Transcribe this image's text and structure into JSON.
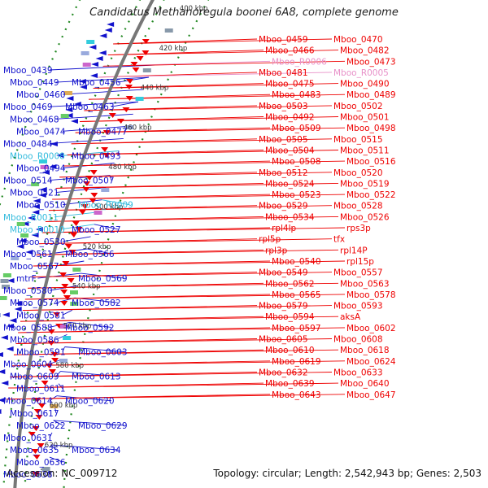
{
  "title": "Candidatus Methanoregula boonei 6A8, complete genome",
  "footer": {
    "accession": "Accession: NC_009712",
    "topology": "Topology: circular; Length: 2,542,943 bp; Genes: 2,503"
  },
  "colors": {
    "forward_strand": "#ee0000",
    "reverse_strand": "#1111cc",
    "rna_forward": "#e890c8",
    "rna_reverse": "#33bbdd",
    "backbone": "#777777",
    "ticks": "#228822"
  },
  "kbp_ticks": [
    "400 kbp",
    "420 kbp",
    "440 kbp",
    "460 kbp",
    "480 kbp",
    "500 kbp",
    "520 kbp",
    "540 kbp",
    "560 kbp",
    "580 kbp",
    "600 kbp",
    "620 kbp"
  ],
  "left_labels": [
    {
      "text": "Mboo_0439",
      "kind": "gene"
    },
    {
      "text": "Mboo_0449",
      "kind": "gene"
    },
    {
      "text": "Mboo_0456",
      "kind": "gene"
    },
    {
      "text": "Mboo_0460",
      "kind": "gene"
    },
    {
      "text": "Mboo_0469",
      "kind": "gene"
    },
    {
      "text": "Mboo_0463",
      "kind": "gene"
    },
    {
      "text": "Mboo_0468",
      "kind": "gene"
    },
    {
      "text": "Mboo_0474",
      "kind": "gene"
    },
    {
      "text": "Mboo_0477",
      "kind": "gene"
    },
    {
      "text": "Mboo_0484",
      "kind": "gene"
    },
    {
      "text": "Mboo_R0008",
      "kind": "rna"
    },
    {
      "text": "Mboo_0493",
      "kind": "gene"
    },
    {
      "text": "Mboo_0494",
      "kind": "gene"
    },
    {
      "text": "Mboo_0514",
      "kind": "gene"
    },
    {
      "text": "Mboo_0507",
      "kind": "gene"
    },
    {
      "text": "Mboo_0521",
      "kind": "gene"
    },
    {
      "text": "Mboo_0510",
      "kind": "gene"
    },
    {
      "text": "Mboo_R0009",
      "kind": "rna"
    },
    {
      "text": "Mboo_R0011",
      "kind": "rna"
    },
    {
      "text": "Mboo_R0010",
      "kind": "rna"
    },
    {
      "text": "Mboo_0527",
      "kind": "gene"
    },
    {
      "text": "Mboo_0530",
      "kind": "gene"
    },
    {
      "text": "Mboo_0561",
      "kind": "gene"
    },
    {
      "text": "Mboo_0566",
      "kind": "gene"
    },
    {
      "text": "Mboo_0567",
      "kind": "gene"
    },
    {
      "text": "mtrF",
      "kind": "gene"
    },
    {
      "text": "Mboo_0569",
      "kind": "gene"
    },
    {
      "text": "Mboo_0580",
      "kind": "gene"
    },
    {
      "text": "Mboo_0574",
      "kind": "gene"
    },
    {
      "text": "Mboo_0582",
      "kind": "gene"
    },
    {
      "text": "Mboo_0581",
      "kind": "gene"
    },
    {
      "text": "Mboo_0588",
      "kind": "gene"
    },
    {
      "text": "Mboo_0592",
      "kind": "gene"
    },
    {
      "text": "Mboo_0586",
      "kind": "gene"
    },
    {
      "text": "Mboo_0591",
      "kind": "gene"
    },
    {
      "text": "Mboo_0603",
      "kind": "gene"
    },
    {
      "text": "Mboo_0604",
      "kind": "gene"
    },
    {
      "text": "Mboo_0609",
      "kind": "gene"
    },
    {
      "text": "Mboo_0613",
      "kind": "gene"
    },
    {
      "text": "Mboo_0611",
      "kind": "gene"
    },
    {
      "text": "Mboo_0614",
      "kind": "gene"
    },
    {
      "text": "Mboo_0620",
      "kind": "gene"
    },
    {
      "text": "Mboo_0617",
      "kind": "gene"
    },
    {
      "text": "Mboo_0622",
      "kind": "gene"
    },
    {
      "text": "Mboo_0629",
      "kind": "gene"
    },
    {
      "text": "Mboo_0631",
      "kind": "gene"
    },
    {
      "text": "Mboo_0635",
      "kind": "gene"
    },
    {
      "text": "Mboo_0634",
      "kind": "gene"
    },
    {
      "text": "Mboo_0636",
      "kind": "gene"
    },
    {
      "text": "Mboo_0638",
      "kind": "gene"
    }
  ],
  "right_labels": [
    {
      "text": "Mboo_0459",
      "kind": "gene"
    },
    {
      "text": "Mboo_0470",
      "kind": "gene"
    },
    {
      "text": "Mboo_0466",
      "kind": "gene"
    },
    {
      "text": "Mboo_0482",
      "kind": "gene"
    },
    {
      "text": "Mboo_R0006",
      "kind": "rna"
    },
    {
      "text": "Mboo_0473",
      "kind": "gene"
    },
    {
      "text": "Mboo_0481",
      "kind": "gene"
    },
    {
      "text": "Mboo_R0005",
      "kind": "rna"
    },
    {
      "text": "Mboo_0475",
      "kind": "gene"
    },
    {
      "text": "Mboo_0490",
      "kind": "gene"
    },
    {
      "text": "Mboo_0483",
      "kind": "gene"
    },
    {
      "text": "Mboo_0489",
      "kind": "gene"
    },
    {
      "text": "Mboo_0503",
      "kind": "gene"
    },
    {
      "text": "Mboo_0502",
      "kind": "gene"
    },
    {
      "text": "Mboo_0492",
      "kind": "gene"
    },
    {
      "text": "Mboo_0501",
      "kind": "gene"
    },
    {
      "text": "Mboo_0509",
      "kind": "gene"
    },
    {
      "text": "Mboo_0498",
      "kind": "gene"
    },
    {
      "text": "Mboo_0505",
      "kind": "gene"
    },
    {
      "text": "Mboo_0515",
      "kind": "gene"
    },
    {
      "text": "Mboo_0504",
      "kind": "gene"
    },
    {
      "text": "Mboo_0511",
      "kind": "gene"
    },
    {
      "text": "Mboo_0508",
      "kind": "gene"
    },
    {
      "text": "Mboo_0516",
      "kind": "gene"
    },
    {
      "text": "Mboo_0512",
      "kind": "gene"
    },
    {
      "text": "Mboo_0520",
      "kind": "gene"
    },
    {
      "text": "Mboo_0524",
      "kind": "gene"
    },
    {
      "text": "Mboo_0519",
      "kind": "gene"
    },
    {
      "text": "Mboo_0523",
      "kind": "gene"
    },
    {
      "text": "Mboo_0522",
      "kind": "gene"
    },
    {
      "text": "Mboo_0529",
      "kind": "gene"
    },
    {
      "text": "Mboo_0528",
      "kind": "gene"
    },
    {
      "text": "Mboo_0534",
      "kind": "gene"
    },
    {
      "text": "Mboo_0526",
      "kind": "gene"
    },
    {
      "text": "rpl4lp",
      "kind": "gene"
    },
    {
      "text": "rps3p",
      "kind": "gene"
    },
    {
      "text": "rpl5p",
      "kind": "gene"
    },
    {
      "text": "tfx",
      "kind": "gene"
    },
    {
      "text": "rpl3p",
      "kind": "gene"
    },
    {
      "text": "rpl14P",
      "kind": "gene"
    },
    {
      "text": "Mboo_0540",
      "kind": "gene"
    },
    {
      "text": "rpl15p",
      "kind": "gene"
    },
    {
      "text": "Mboo_0549",
      "kind": "gene"
    },
    {
      "text": "Mboo_0557",
      "kind": "gene"
    },
    {
      "text": "Mboo_0562",
      "kind": "gene"
    },
    {
      "text": "Mboo_0563",
      "kind": "gene"
    },
    {
      "text": "Mboo_0565",
      "kind": "gene"
    },
    {
      "text": "Mboo_0578",
      "kind": "gene"
    },
    {
      "text": "Mboo_0579",
      "kind": "gene"
    },
    {
      "text": "Mboo_0593",
      "kind": "gene"
    },
    {
      "text": "Mboo_0594",
      "kind": "gene"
    },
    {
      "text": "aksA",
      "kind": "gene"
    },
    {
      "text": "Mboo_0597",
      "kind": "gene"
    },
    {
      "text": "Mboo_0602",
      "kind": "gene"
    },
    {
      "text": "Mboo_0605",
      "kind": "gene"
    },
    {
      "text": "Mboo_0608",
      "kind": "gene"
    },
    {
      "text": "Mboo_0610",
      "kind": "gene"
    },
    {
      "text": "Mboo_0618",
      "kind": "gene"
    },
    {
      "text": "Mboo_0619",
      "kind": "gene"
    },
    {
      "text": "Mboo_0624",
      "kind": "gene"
    },
    {
      "text": "Mboo_0632",
      "kind": "gene"
    },
    {
      "text": "Mboo_0633",
      "kind": "gene"
    },
    {
      "text": "Mboo_0639",
      "kind": "gene"
    },
    {
      "text": "Mboo_0640",
      "kind": "gene"
    },
    {
      "text": "Mboo_0643",
      "kind": "gene"
    },
    {
      "text": "Mboo_0647",
      "kind": "gene"
    }
  ]
}
